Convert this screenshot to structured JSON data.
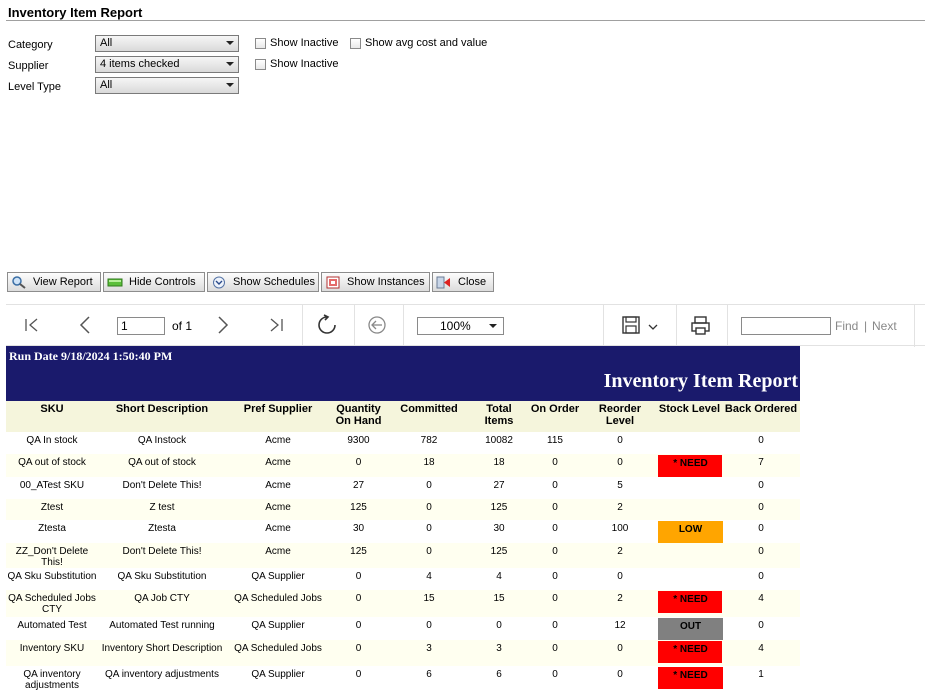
{
  "window": {
    "title": "Inventory Item Report"
  },
  "params": {
    "category_label": "Category",
    "category_value": "All",
    "supplier_label": "Supplier",
    "supplier_value": "4 items checked",
    "level_type_label": "Level Type",
    "level_type_value": "All",
    "show_inactive_1": "Show Inactive",
    "show_inactive_2": "Show Inactive",
    "show_avg_cost": "Show avg cost and value"
  },
  "buttons": {
    "view_report": "View Report",
    "hide_controls": "Hide Controls",
    "show_schedules": "Show Schedules",
    "show_instances": "Show Instances",
    "close": "Close"
  },
  "toolbar": {
    "page_value": "1",
    "page_of": "of 1",
    "zoom": "100%",
    "find": "Find",
    "separator": "|",
    "next": "Next"
  },
  "report": {
    "run_date": "Run Date 9/18/2024 1:50:40 PM",
    "title": "Inventory Item Report",
    "columns": [
      "SKU",
      "Short Description",
      "Pref Supplier",
      "Quantity On Hand",
      "Committed",
      "Total Items",
      "On Order",
      "Reorder Level",
      "Stock Level",
      "Back Ordered"
    ],
    "rows": [
      [
        "QA In stock",
        "QA Instock",
        "Acme",
        "9300",
        "782",
        "10082",
        "115",
        "0",
        "",
        "0"
      ],
      [
        "QA out of stock",
        "QA out of stock",
        "Acme",
        "0",
        "18",
        "18",
        "0",
        "0",
        "* NEED",
        "7"
      ],
      [
        "00_ATest SKU",
        "Don't Delete This!",
        "Acme",
        "27",
        "0",
        "27",
        "0",
        "5",
        "",
        "0"
      ],
      [
        "Ztest",
        "Z test",
        "Acme",
        "125",
        "0",
        "125",
        "0",
        "2",
        "",
        "0"
      ],
      [
        "Ztesta",
        "Ztesta",
        "Acme",
        "30",
        "0",
        "30",
        "0",
        "100",
        "LOW",
        "0"
      ],
      [
        "ZZ_Don't Delete This!",
        "Don't Delete This!",
        "Acme",
        "125",
        "0",
        "125",
        "0",
        "2",
        "",
        "0"
      ],
      [
        "QA Sku Substitution",
        "QA Sku Substitution",
        "QA Supplier",
        "0",
        "4",
        "4",
        "0",
        "0",
        "",
        "0"
      ],
      [
        "QA Scheduled Jobs CTY",
        "QA Job CTY",
        "QA Scheduled Jobs",
        "0",
        "15",
        "15",
        "0",
        "2",
        "* NEED",
        "4"
      ],
      [
        "Automated Test",
        "Automated Test running",
        "QA Supplier",
        "0",
        "0",
        "0",
        "0",
        "12",
        "OUT",
        "0"
      ],
      [
        "Inventory SKU",
        "Inventory Short Description",
        "QA Scheduled Jobs",
        "0",
        "3",
        "3",
        "0",
        "0",
        "* NEED",
        "4"
      ],
      [
        "QA inventory adjustments",
        "QA inventory adjustments",
        "QA Supplier",
        "0",
        "6",
        "6",
        "0",
        "0",
        "* NEED",
        "1"
      ]
    ]
  },
  "colors": {
    "report_header_bg": "#1a1a6c",
    "column_header_bg": "#f5f5dc",
    "need": "#ff0000",
    "low": "#ffa500",
    "out": "#808080"
  }
}
